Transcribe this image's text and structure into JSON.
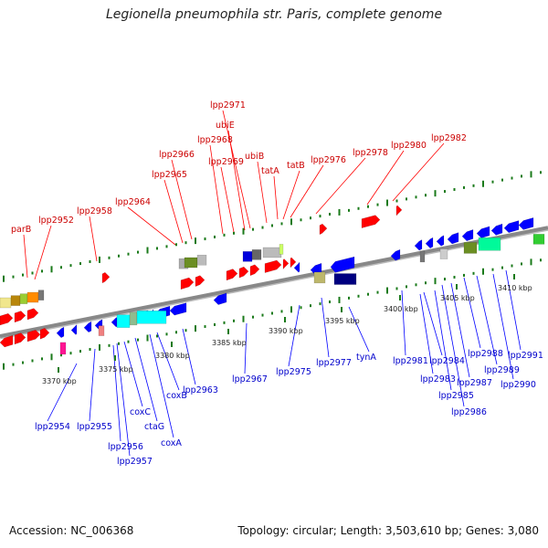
{
  "title": "Legionella pneumophila str. Paris, complete genome",
  "footer": {
    "accession": "Accession: NC_006368",
    "summary": "Topology: circular; Length: 3,503,610 bp; Genes: 3,080"
  },
  "colors": {
    "forward_gene": "#ff0000",
    "reverse_gene": "#0000ff",
    "forward_label": "#cc0000",
    "reverse_label": "#0000cc",
    "backbone": "#888888",
    "tick_dots": "#1a7a1a"
  },
  "kbp_ticks": [
    {
      "label": "3370 kbp"
    },
    {
      "label": "3375 kbp"
    },
    {
      "label": "3380 kbp"
    },
    {
      "label": "3385 kbp"
    },
    {
      "label": "3390 kbp"
    },
    {
      "label": "3395 kbp"
    },
    {
      "label": "3400 kbp"
    },
    {
      "label": "3405 kbp"
    },
    {
      "label": "3410 kbp"
    }
  ],
  "forward_labels": [
    "parB",
    "lpp2952",
    "lpp2958",
    "lpp2964",
    "lpp2965",
    "lpp2966",
    "lpp2968",
    "lpp2969",
    "lpp2971",
    "ubiE",
    "ubiB",
    "tatA",
    "tatB",
    "lpp2976",
    "lpp2978",
    "lpp2980",
    "lpp2982"
  ],
  "reverse_labels": [
    "lpp2954",
    "lpp2955",
    "lpp2956",
    "lpp2957",
    "coxC",
    "ctaG",
    "coxA",
    "coxB",
    "lpp2963",
    "lpp2967",
    "lpp2975",
    "lpp2977",
    "tynA",
    "lpp2981",
    "lpp2984",
    "lpp2983",
    "lpp2985",
    "lpp2986",
    "lpp2987",
    "lpp2988",
    "lpp2989",
    "lpp2990",
    "lpp2991"
  ]
}
